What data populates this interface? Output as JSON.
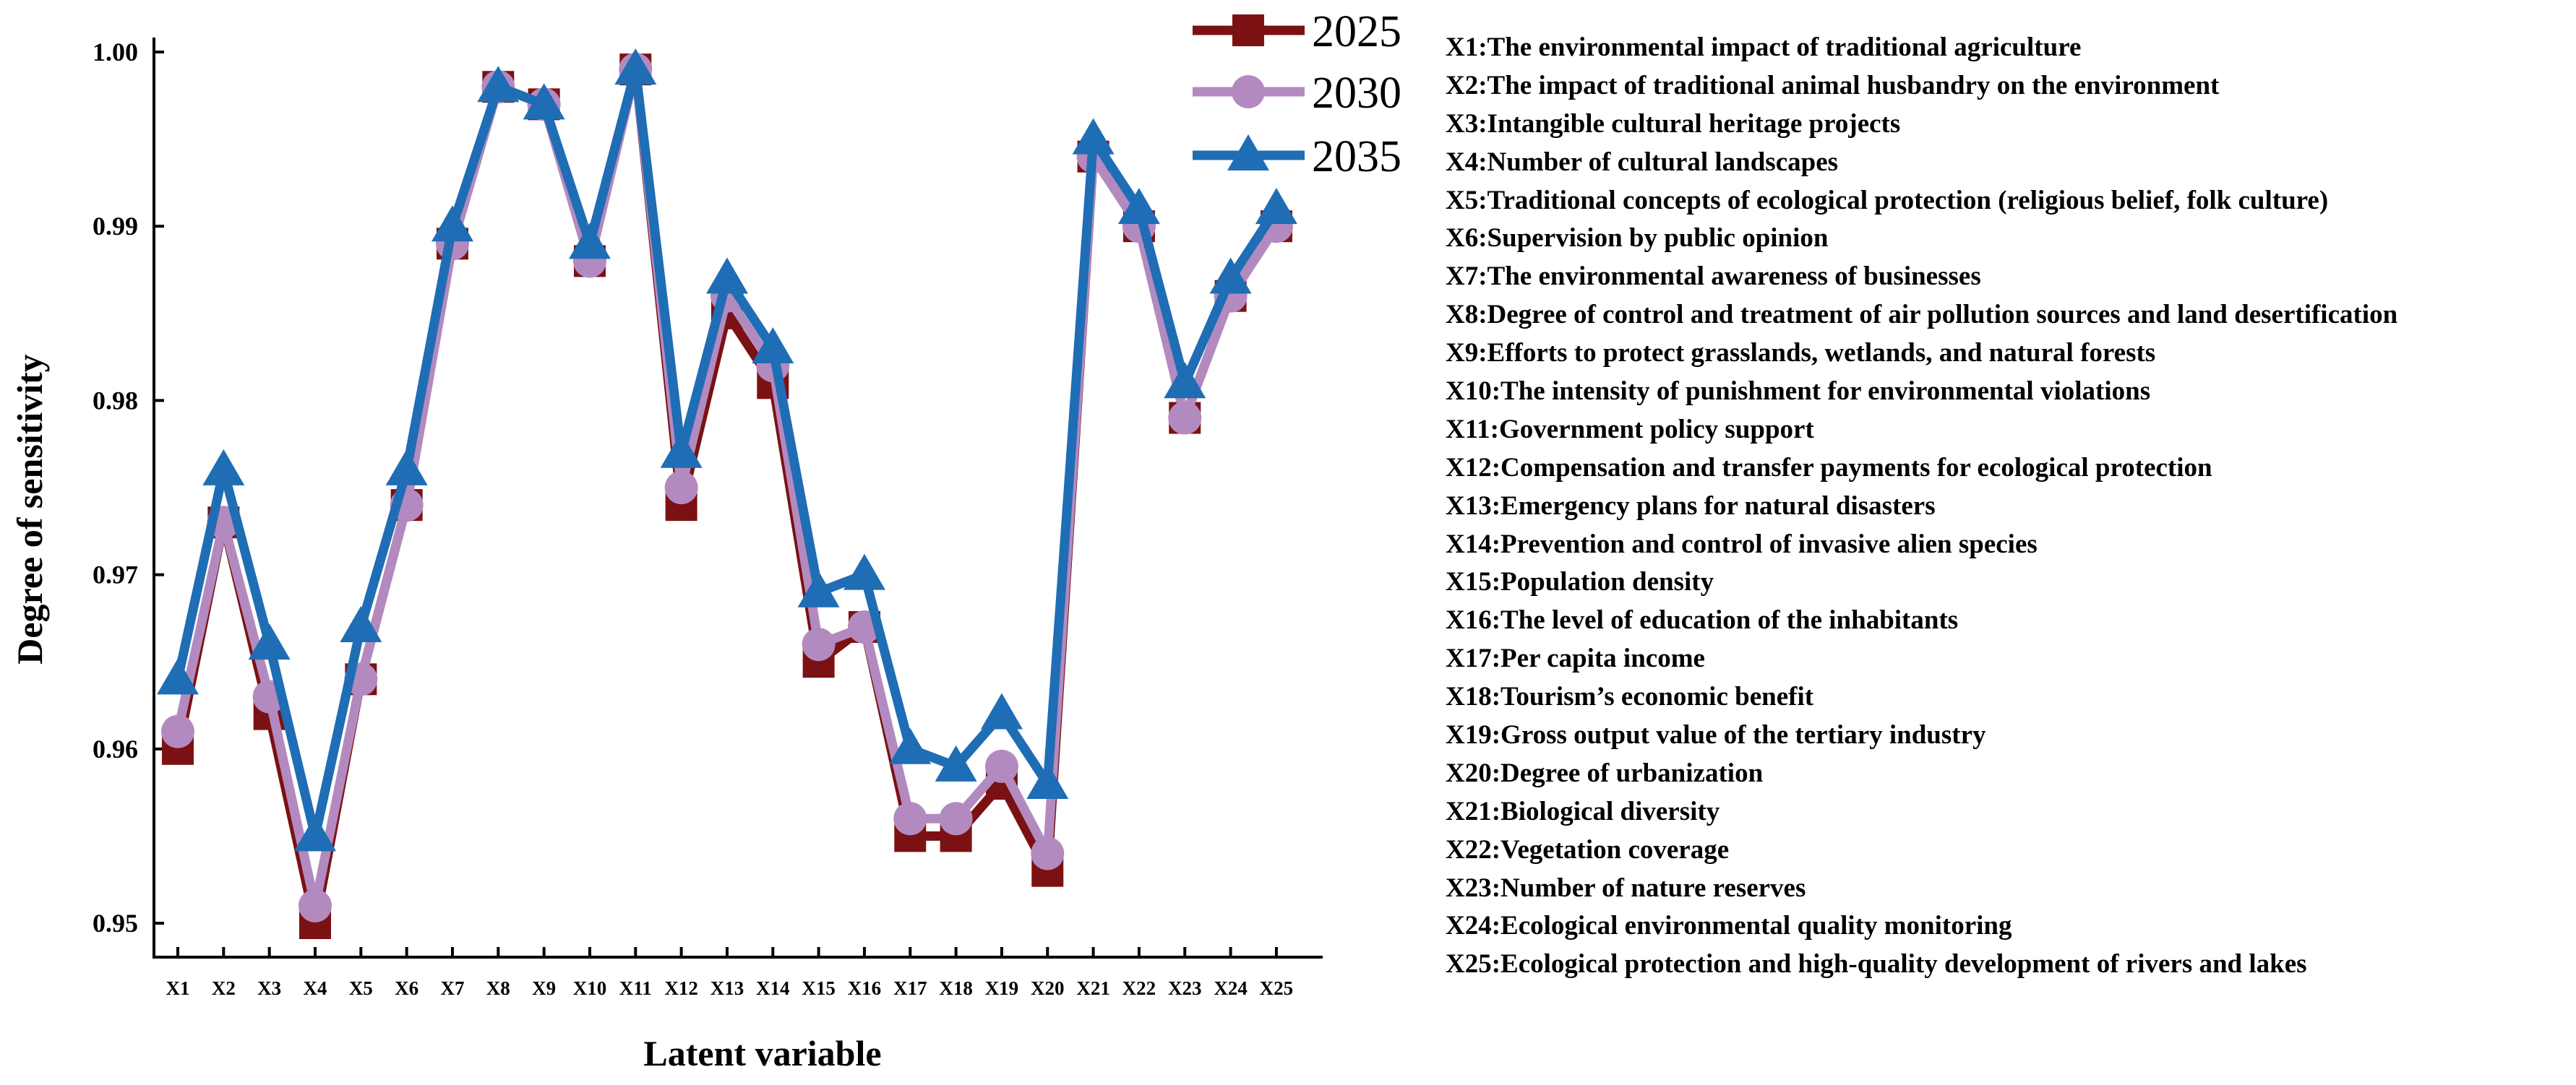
{
  "chart_data": {
    "type": "line",
    "xlabel": "Latent variable",
    "ylabel": "Degree of sensitivity",
    "ylim": [
      0.948,
      1.0
    ],
    "yticks": [
      "0.95",
      "0.96",
      "0.97",
      "0.98",
      "0.99",
      "1.00"
    ],
    "ytick_values": [
      0.95,
      0.96,
      0.97,
      0.98,
      0.99,
      1.0
    ],
    "categories": [
      "X1",
      "X2",
      "X3",
      "X4",
      "X5",
      "X6",
      "X7",
      "X8",
      "X9",
      "X10",
      "X11",
      "X12",
      "X13",
      "X14",
      "X15",
      "X16",
      "X17",
      "X18",
      "X19",
      "X20",
      "X21",
      "X22",
      "X23",
      "X24",
      "X25"
    ],
    "legend_position": "top-right",
    "series": [
      {
        "name": "2025",
        "color": "#7b1113",
        "marker": "square",
        "values": [
          0.96,
          0.973,
          0.962,
          0.95,
          0.964,
          0.974,
          0.989,
          0.998,
          0.997,
          0.988,
          0.999,
          0.974,
          0.985,
          0.981,
          0.965,
          0.967,
          0.955,
          0.955,
          0.958,
          0.953,
          0.994,
          0.99,
          0.979,
          0.986,
          0.99
        ]
      },
      {
        "name": "2030",
        "color": "#b38ac0",
        "marker": "circle",
        "values": [
          0.961,
          0.973,
          0.963,
          0.951,
          0.964,
          0.974,
          0.989,
          0.998,
          0.997,
          0.988,
          0.999,
          0.975,
          0.986,
          0.982,
          0.966,
          0.967,
          0.956,
          0.956,
          0.959,
          0.954,
          0.994,
          0.99,
          0.979,
          0.986,
          0.99
        ]
      },
      {
        "name": "2035",
        "color": "#1f6db5",
        "marker": "triangle",
        "values": [
          0.964,
          0.976,
          0.966,
          0.955,
          0.967,
          0.976,
          0.99,
          0.998,
          0.997,
          0.989,
          0.999,
          0.977,
          0.987,
          0.983,
          0.969,
          0.97,
          0.96,
          0.959,
          0.962,
          0.958,
          0.995,
          0.991,
          0.981,
          0.987,
          0.991
        ]
      }
    ]
  },
  "variables": [
    "X1:The environmental  impact  of traditional  agriculture",
    "X2:The impact  of traditional  animal husbandry  on the environment",
    "X3:Intangible  cultural heritage projects",
    "X4:Number of cultural landscapes",
    "X5:Traditional  concepts of ecological protection  (religious belief, folk culture)",
    "X6:Supervision  by public  opinion",
    "X7:The environmental  awareness of businesses",
    "X8:Degree of control  and treatment  of air pollution  sources and land desertification",
    "X9:Efforts to protect grasslands, wetlands, and natural  forests",
    "X10:The intensity of punishment  for environmental  violations",
    "X11:Government  policy support",
    "X12:Compensation  and transfer payments for ecological protection",
    "X13:Emergency plans for natural disasters",
    "X14:Prevention  and control of invasive alien species",
    "X15:Population  density",
    "X16:The level of education  of the inhabitants",
    "X17:Per capita income",
    "X18:Tourism’s  economic benefit",
    "X19:Gross output value of the tertiary industry",
    "X20:Degree of urbanization",
    "X21:Biological diversity",
    "X22:Vegetation coverage",
    "X23:Number of nature reserves",
    "X24:Ecological environmental  quality monitoring",
    "X25:Ecological protection  and high-quality  development of rivers and lakes"
  ]
}
